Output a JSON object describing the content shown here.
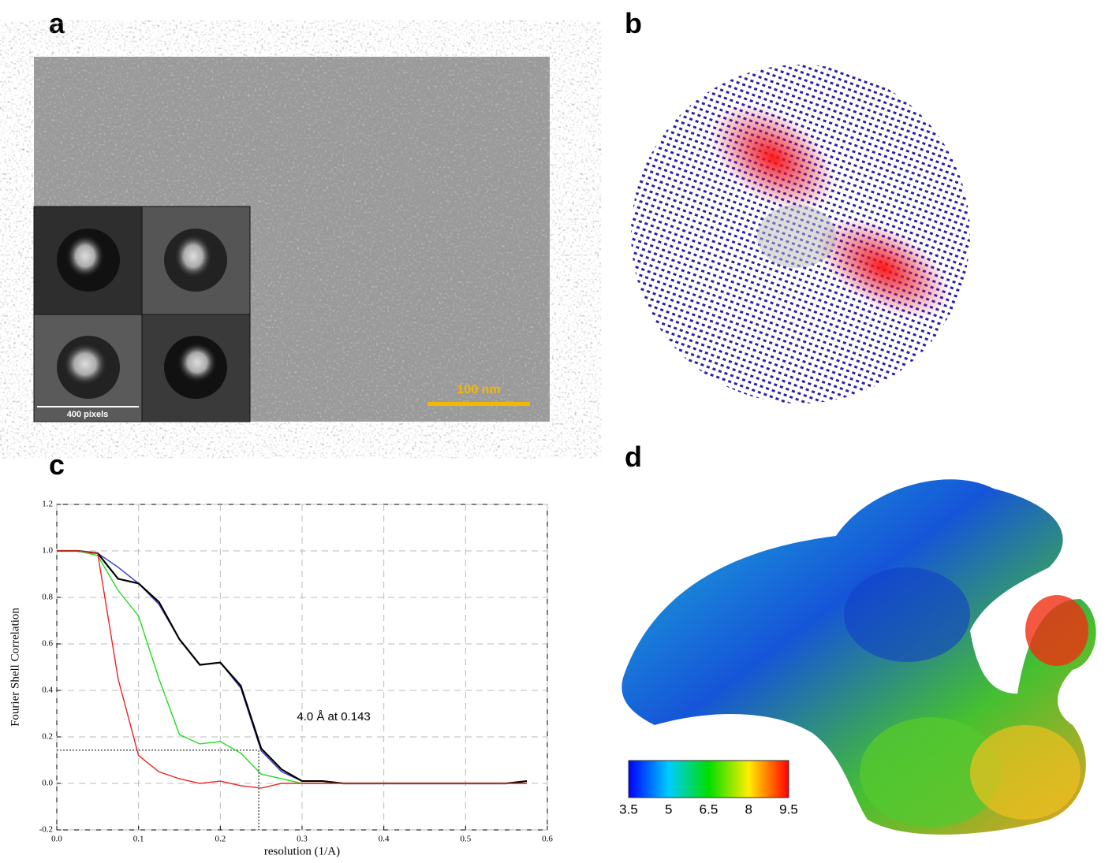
{
  "panel_labels": [
    "a",
    "b",
    "c",
    "d"
  ],
  "panel_a": {
    "scale_bar": "100 nm",
    "inset_bar": "400 pixels"
  },
  "panel_d": {
    "colorbar_ticks": [
      3.5,
      5,
      6.5,
      8,
      9.5
    ]
  },
  "chart_data": {
    "type": "line",
    "xlabel": "resolution (1/A)",
    "ylabel": "Fourier Shell Correlation",
    "annotation": "4.0 Å at 0.143",
    "threshold": {
      "x": 0.247,
      "y": 0.143
    },
    "x": [
      0,
      0.025,
      0.05,
      0.075,
      0.1,
      0.125,
      0.15,
      0.175,
      0.2,
      0.225,
      0.25,
      0.275,
      0.3,
      0.325,
      0.35,
      0.375,
      0.4,
      0.425,
      0.45,
      0.475,
      0.5,
      0.525,
      0.55,
      0.575
    ],
    "series": [
      {
        "color": "#3a3acc",
        "values": [
          1.0,
          1.0,
          0.99,
          0.93,
          0.86,
          0.77,
          0.62,
          0.51,
          0.52,
          0.41,
          0.14,
          0.05,
          0.01,
          0.01,
          0.0,
          0.0,
          0.0,
          0.0,
          0.0,
          0.0,
          0.0,
          0.0,
          0.0,
          0.01
        ]
      },
      {
        "color": "#000000",
        "values": [
          1.0,
          1.0,
          0.99,
          0.88,
          0.86,
          0.78,
          0.62,
          0.51,
          0.52,
          0.42,
          0.15,
          0.06,
          0.01,
          0.01,
          0.0,
          0.0,
          0.0,
          0.0,
          0.0,
          0.0,
          0.0,
          0.0,
          0.0,
          0.01
        ]
      },
      {
        "color": "#22dd22",
        "values": [
          1.0,
          1.0,
          0.98,
          0.83,
          0.72,
          0.45,
          0.21,
          0.17,
          0.18,
          0.13,
          0.04,
          0.02,
          0.0,
          0.0,
          0.0,
          0.0,
          0.0,
          0.0,
          0.0,
          0.0,
          0.0,
          0.0,
          0.0,
          0.0
        ]
      },
      {
        "color": "#ee2222",
        "values": [
          1.0,
          1.0,
          0.99,
          0.45,
          0.12,
          0.05,
          0.02,
          0.0,
          0.01,
          -0.01,
          -0.02,
          0.0,
          0.0,
          0.0,
          0.0,
          0.0,
          0.0,
          0.0,
          0.0,
          0.0,
          0.0,
          0.0,
          0.0,
          0.0
        ]
      }
    ],
    "xlim": [
      0,
      0.6
    ],
    "xticks": [
      {
        "value": 0,
        "label": "0.0"
      },
      0.1,
      0.2,
      0.3,
      0.4,
      0.5,
      0.6
    ],
    "ylim": [
      -0.2,
      1.2
    ],
    "yticks": [
      -0.2,
      {
        "value": 0,
        "label": "0.0"
      },
      0.2,
      0.4,
      0.6,
      0.8,
      {
        "value": 1,
        "label": "1.0"
      },
      1.2
    ],
    "grid": true
  }
}
